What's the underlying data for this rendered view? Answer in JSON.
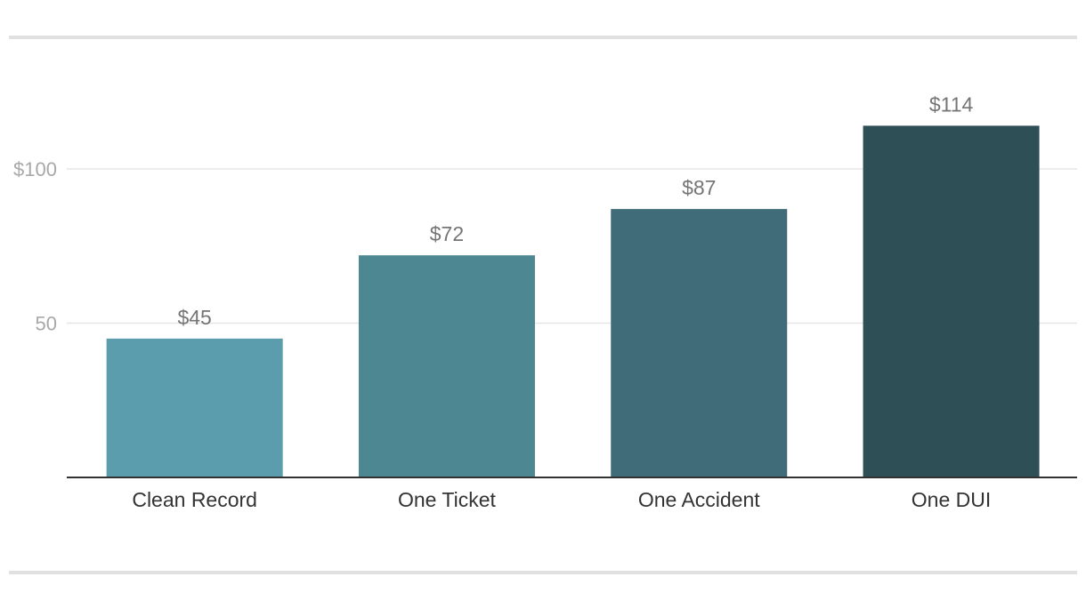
{
  "chart_data": {
    "type": "bar",
    "title": "",
    "xlabel": "",
    "ylabel": "",
    "categories": [
      "Clean Record",
      "One Ticket",
      "One Accident",
      "One DUI"
    ],
    "values": [
      45,
      72,
      87,
      114
    ],
    "value_labels": [
      "$45",
      "$72",
      "$87",
      "$114"
    ],
    "bar_colors": [
      "#5b9dac",
      "#4d8792",
      "#3f6c78",
      "#2f4f56"
    ],
    "ylim": [
      0,
      120
    ],
    "yticks": [
      {
        "value": 50,
        "label": "50"
      },
      {
        "value": 100,
        "label": "$100"
      }
    ],
    "grid": true,
    "legend": "none"
  }
}
